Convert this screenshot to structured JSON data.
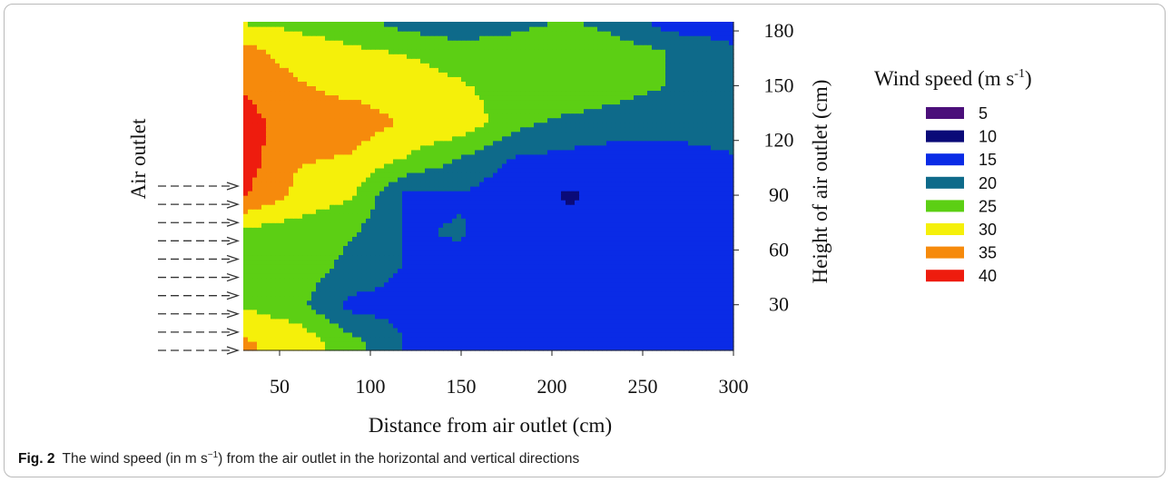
{
  "figure": {
    "label": "Fig. 2",
    "caption_before": "The wind speed (in m s",
    "caption_sup": "−1",
    "caption_after": ") from the air outlet in the horizontal and vertical directions"
  },
  "chart_data": {
    "type": "heatmap",
    "title": "",
    "xlabel": "Distance from air outlet (cm)",
    "ylabel_left": "Air outlet",
    "ylabel_right": "Height of air outlet (cm)",
    "xlim": [
      30,
      300
    ],
    "ylim": [
      5,
      185
    ],
    "x_ticks": [
      50,
      100,
      150,
      200,
      250,
      300
    ],
    "y_ticks": [
      30,
      60,
      90,
      120,
      150,
      180
    ],
    "legend_title": "Wind speed (m s",
    "legend_title_sup": "-1",
    "legend_title_end": ")",
    "legend_position": "right",
    "levels": [
      {
        "label": "5",
        "value": 5,
        "color": "#4b0f7a"
      },
      {
        "label": "10",
        "value": 10,
        "color": "#0a0a78"
      },
      {
        "label": "15",
        "value": 15,
        "color": "#0a2be6"
      },
      {
        "label": "20",
        "value": 20,
        "color": "#0e6a8a"
      },
      {
        "label": "25",
        "value": 25,
        "color": "#5ccf14"
      },
      {
        "label": "30",
        "value": 30,
        "color": "#f5f00a"
      },
      {
        "label": "35",
        "value": 35,
        "color": "#f68a0c"
      },
      {
        "label": "40",
        "value": 40,
        "color": "#ee1c0e"
      }
    ],
    "arrow_heights": [
      5,
      15,
      25,
      35,
      45,
      55,
      65,
      75,
      85,
      95
    ],
    "x": [
      30,
      60,
      90,
      120,
      150,
      180,
      210,
      240,
      270,
      300
    ],
    "y": [
      10,
      30,
      50,
      70,
      90,
      110,
      130,
      150,
      170,
      185
    ],
    "z": [
      [
        33,
        31,
        24,
        17,
        16,
        15,
        15,
        15,
        14,
        13
      ],
      [
        27,
        24,
        16,
        16,
        15,
        15,
        15,
        15,
        15,
        15
      ],
      [
        24,
        25,
        21,
        17,
        16,
        15,
        15,
        15,
        15,
        16
      ],
      [
        26,
        25,
        23,
        17,
        18,
        14,
        14,
        15,
        15,
        16
      ],
      [
        38,
        31,
        28,
        16,
        17,
        14,
        12,
        14,
        15,
        15
      ],
      [
        40,
        33,
        32,
        27,
        22,
        17,
        16,
        15,
        16,
        17
      ],
      [
        40,
        34,
        35,
        32,
        31,
        24,
        21,
        20,
        19,
        20
      ],
      [
        37,
        33,
        31,
        30,
        28,
        25,
        27,
        24,
        22,
        21
      ],
      [
        34,
        30,
        28,
        27,
        25,
        25,
        27,
        24,
        22,
        18
      ],
      [
        27,
        26,
        25,
        20,
        18,
        21,
        23,
        20,
        14,
        15
      ]
    ]
  }
}
